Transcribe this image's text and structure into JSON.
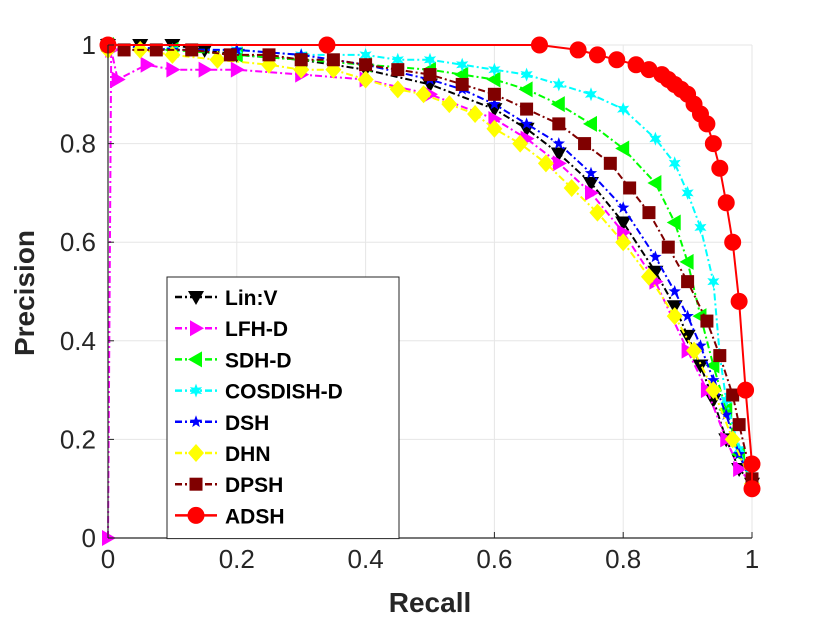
{
  "chart_data": {
    "type": "line",
    "title": "",
    "xlabel": "Recall",
    "ylabel": "Precision",
    "xlim": [
      0,
      1
    ],
    "ylim": [
      0,
      1
    ],
    "xticks": [
      0,
      0.2,
      0.4,
      0.6,
      0.8,
      1
    ],
    "xtick_labels": [
      "0",
      "0.2",
      "0.4",
      "0.6",
      "0.8",
      "1"
    ],
    "yticks": [
      0,
      0.2,
      0.4,
      0.6,
      0.8,
      1
    ],
    "ytick_labels": [
      "0",
      "0.2",
      "0.4",
      "0.6",
      "0.8",
      "1"
    ],
    "grid": true,
    "legend_position": "lower-left",
    "series": [
      {
        "name": "Lin:V",
        "color": "#000000",
        "marker": "triangle-down",
        "dash": "dashdot",
        "x": [
          0,
          0.05,
          0.1,
          0.15,
          0.2,
          0.3,
          0.4,
          0.5,
          0.6,
          0.65,
          0.7,
          0.75,
          0.8,
          0.85,
          0.88,
          0.9,
          0.92,
          0.94,
          0.96,
          0.98,
          1.0
        ],
        "y": [
          1.0,
          1.0,
          1.0,
          0.99,
          0.98,
          0.97,
          0.95,
          0.92,
          0.87,
          0.83,
          0.78,
          0.72,
          0.64,
          0.54,
          0.47,
          0.41,
          0.35,
          0.28,
          0.2,
          0.14,
          0.11
        ]
      },
      {
        "name": "LFH-D",
        "color": "#ff00ff",
        "marker": "triangle-right",
        "dash": "dashdot",
        "x": [
          0,
          0.005,
          0.015,
          0.06,
          0.1,
          0.15,
          0.2,
          0.3,
          0.4,
          0.5,
          0.6,
          0.65,
          0.7,
          0.75,
          0.8,
          0.85,
          0.9,
          0.93,
          0.96,
          0.98,
          1.0
        ],
        "y": [
          0.0,
          0.99,
          0.93,
          0.96,
          0.95,
          0.95,
          0.95,
          0.94,
          0.93,
          0.9,
          0.85,
          0.81,
          0.76,
          0.7,
          0.62,
          0.52,
          0.38,
          0.3,
          0.2,
          0.14,
          0.11
        ]
      },
      {
        "name": "SDH-D",
        "color": "#00ff00",
        "marker": "triangle-left",
        "dash": "dashdot",
        "x": [
          0,
          0.1,
          0.2,
          0.3,
          0.4,
          0.5,
          0.55,
          0.6,
          0.65,
          0.7,
          0.75,
          0.8,
          0.85,
          0.88,
          0.9,
          0.92,
          0.94,
          0.96,
          0.98,
          1.0
        ],
        "y": [
          1.0,
          0.99,
          0.98,
          0.97,
          0.96,
          0.95,
          0.94,
          0.93,
          0.91,
          0.88,
          0.84,
          0.79,
          0.72,
          0.64,
          0.56,
          0.45,
          0.35,
          0.26,
          0.17,
          0.11
        ]
      },
      {
        "name": "COSDISH-D",
        "color": "#00ffff",
        "marker": "star6",
        "dash": "dashdot",
        "x": [
          0,
          0.1,
          0.2,
          0.3,
          0.4,
          0.45,
          0.5,
          0.55,
          0.6,
          0.65,
          0.7,
          0.75,
          0.8,
          0.85,
          0.88,
          0.9,
          0.92,
          0.94,
          0.95,
          0.96,
          0.98,
          1.0
        ],
        "y": [
          1.0,
          0.99,
          0.99,
          0.98,
          0.98,
          0.97,
          0.97,
          0.96,
          0.95,
          0.94,
          0.92,
          0.9,
          0.87,
          0.81,
          0.76,
          0.7,
          0.63,
          0.52,
          0.37,
          0.28,
          0.18,
          0.11
        ]
      },
      {
        "name": "DSH",
        "color": "#0000ff",
        "marker": "star5",
        "dash": "dashdot",
        "x": [
          0,
          0.1,
          0.2,
          0.3,
          0.4,
          0.5,
          0.55,
          0.6,
          0.65,
          0.7,
          0.75,
          0.8,
          0.85,
          0.88,
          0.9,
          0.92,
          0.94,
          0.96,
          0.98,
          1.0
        ],
        "y": [
          1.0,
          0.99,
          0.99,
          0.98,
          0.96,
          0.93,
          0.91,
          0.88,
          0.84,
          0.8,
          0.74,
          0.67,
          0.57,
          0.5,
          0.45,
          0.39,
          0.32,
          0.25,
          0.17,
          0.11
        ]
      },
      {
        "name": "DHN",
        "color": "#ffff00",
        "marker": "diamond",
        "dash": "dashdot",
        "x": [
          0,
          0.05,
          0.1,
          0.17,
          0.25,
          0.3,
          0.35,
          0.4,
          0.45,
          0.49,
          0.53,
          0.57,
          0.6,
          0.64,
          0.68,
          0.72,
          0.76,
          0.8,
          0.84,
          0.88,
          0.91,
          0.94,
          0.97,
          1.0
        ],
        "y": [
          0.99,
          0.99,
          0.98,
          0.97,
          0.96,
          0.95,
          0.95,
          0.93,
          0.91,
          0.9,
          0.88,
          0.86,
          0.83,
          0.8,
          0.76,
          0.71,
          0.66,
          0.6,
          0.53,
          0.45,
          0.38,
          0.3,
          0.2,
          0.11
        ]
      },
      {
        "name": "DPSH",
        "color": "#800000",
        "marker": "square",
        "dash": "dashdot",
        "x": [
          0,
          0.025,
          0.075,
          0.13,
          0.19,
          0.25,
          0.3,
          0.35,
          0.4,
          0.45,
          0.5,
          0.55,
          0.6,
          0.65,
          0.7,
          0.74,
          0.78,
          0.81,
          0.84,
          0.87,
          0.9,
          0.93,
          0.95,
          0.97,
          0.98,
          1.0
        ],
        "y": [
          1.0,
          0.99,
          0.99,
          0.99,
          0.98,
          0.98,
          0.97,
          0.97,
          0.96,
          0.95,
          0.94,
          0.92,
          0.9,
          0.87,
          0.84,
          0.8,
          0.76,
          0.71,
          0.66,
          0.59,
          0.52,
          0.44,
          0.37,
          0.29,
          0.23,
          0.12
        ]
      },
      {
        "name": "ADSH",
        "color": "#ff0000",
        "marker": "circle",
        "dash": "solid",
        "x": [
          0,
          0.34,
          0.67,
          0.73,
          0.76,
          0.79,
          0.82,
          0.84,
          0.86,
          0.87,
          0.88,
          0.89,
          0.9,
          0.91,
          0.92,
          0.93,
          0.94,
          0.95,
          0.96,
          0.97,
          0.98,
          0.99,
          1.0,
          1.0
        ],
        "y": [
          1.0,
          1.0,
          1.0,
          0.99,
          0.98,
          0.97,
          0.96,
          0.95,
          0.94,
          0.93,
          0.92,
          0.91,
          0.9,
          0.88,
          0.86,
          0.84,
          0.8,
          0.75,
          0.68,
          0.6,
          0.48,
          0.3,
          0.15,
          0.1
        ]
      }
    ]
  }
}
